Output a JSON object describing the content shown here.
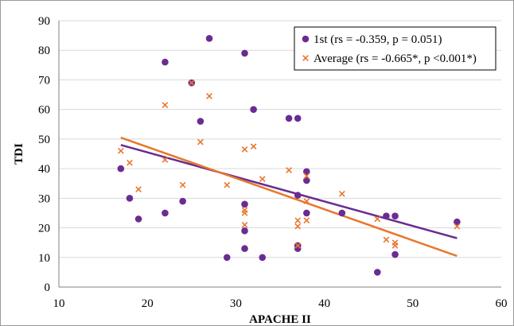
{
  "chart_data": {
    "type": "scatter",
    "title": "",
    "xlabel": "APACHE II",
    "ylabel": "TDI",
    "xlim": [
      10,
      60
    ],
    "ylim": [
      0,
      90
    ],
    "x_ticks": [
      10,
      20,
      30,
      40,
      50,
      60
    ],
    "y_ticks": [
      0,
      10,
      20,
      30,
      40,
      50,
      60,
      70,
      80,
      90
    ],
    "grid": "horizontal",
    "legend_position": "top-right",
    "series": [
      {
        "name": "1st (rs = -0.359, p = 0.051)",
        "marker": "circle",
        "color": "#6a2c91",
        "points": [
          [
            17,
            40
          ],
          [
            18,
            30
          ],
          [
            19,
            23
          ],
          [
            22,
            76
          ],
          [
            22,
            25
          ],
          [
            24,
            29
          ],
          [
            25,
            69
          ],
          [
            26,
            56
          ],
          [
            27,
            84
          ],
          [
            29,
            10
          ],
          [
            31,
            79
          ],
          [
            31,
            28
          ],
          [
            31,
            19
          ],
          [
            31,
            13
          ],
          [
            32,
            60
          ],
          [
            33,
            10
          ],
          [
            36,
            57
          ],
          [
            37,
            57
          ],
          [
            37,
            31
          ],
          [
            37,
            14
          ],
          [
            37,
            13
          ],
          [
            38,
            39
          ],
          [
            38,
            36
          ],
          [
            38,
            25
          ],
          [
            42,
            25
          ],
          [
            46,
            5
          ],
          [
            47,
            24
          ],
          [
            48,
            24
          ],
          [
            48,
            11
          ],
          [
            55,
            22
          ]
        ],
        "trend": {
          "x": [
            17,
            55
          ],
          "y": [
            48,
            16.5
          ],
          "color": "#6a2c91"
        }
      },
      {
        "name": "Average (rs = -0.665*, p <0.001*)",
        "marker": "x",
        "color": "#e8772e",
        "points": [
          [
            17,
            46
          ],
          [
            18,
            42
          ],
          [
            19,
            33
          ],
          [
            22,
            61.5
          ],
          [
            22,
            43
          ],
          [
            24,
            34.5
          ],
          [
            25,
            69
          ],
          [
            26,
            49
          ],
          [
            27,
            64.5
          ],
          [
            29,
            34.5
          ],
          [
            31,
            46.5
          ],
          [
            31,
            26
          ],
          [
            31,
            25
          ],
          [
            31,
            21
          ],
          [
            32,
            47.5
          ],
          [
            33,
            36.5
          ],
          [
            36,
            39.5
          ],
          [
            37,
            22.5
          ],
          [
            37,
            20.5
          ],
          [
            37,
            14
          ],
          [
            38,
            37.5
          ],
          [
            38,
            29
          ],
          [
            38,
            22.5
          ],
          [
            42,
            31.5
          ],
          [
            46,
            23
          ],
          [
            47,
            16
          ],
          [
            48,
            15
          ],
          [
            48,
            14
          ],
          [
            55,
            20.5
          ]
        ],
        "trend": {
          "x": [
            17,
            55
          ],
          "y": [
            50.5,
            10.5
          ],
          "color": "#e8772e"
        }
      }
    ]
  }
}
